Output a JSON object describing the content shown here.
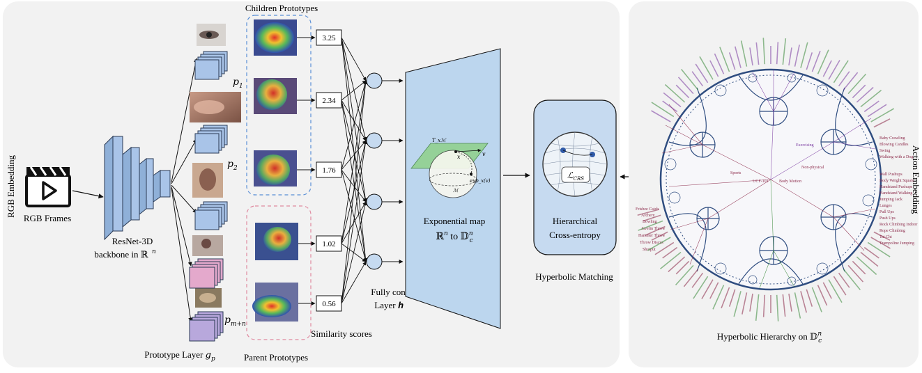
{
  "left_panel": {
    "side_label": "RGB Embedding",
    "rgb_frames_label": "RGB Frames",
    "backbone_label_1": "ResNet-3D",
    "backbone_label_2": "backbone in ℝ",
    "backbone_sup": "n",
    "prototype_layer_label": "Prototype Layer 𝑔",
    "prototype_layer_sub": "p",
    "children_prototypes_label": "Children Prototypes",
    "parent_prototypes_label": "Parent Prototypes",
    "similarity_scores_label": "Similarity scores",
    "fc_label_1": "Fully connected",
    "fc_label_2": "Layer 𝒉",
    "prototype_labels": [
      {
        "base": "p",
        "sub": "1"
      },
      {
        "base": "p",
        "sub": "2"
      },
      {
        "base": "p",
        "sub": "m+n"
      }
    ],
    "scores": [
      "3.25",
      "2.34",
      "1.76",
      "1.02",
      "0.56"
    ],
    "exp_map_title": "Exponential map",
    "exp_map_from": "ℝ",
    "exp_map_from_sup": "n",
    "exp_map_to_word": "to",
    "exp_map_to": "𝔻",
    "exp_map_to_sup": "n",
    "exp_map_to_sub": "c",
    "manifold_labels": {
      "tangent": "T_xℳ",
      "x": "x",
      "v": "v",
      "exp": "exp_x(v)",
      "M": "ℳ"
    },
    "hce_label_1": "Hierarchical",
    "hce_label_2": "Cross-entropy",
    "loss_label": "ℒ",
    "loss_sub": "CRS",
    "hyperbolic_matching_label": "Hyperbolic Matching"
  },
  "right_panel": {
    "side_label": "Action Embedding",
    "caption": "Hyperbolic Hierarchy on 𝔻",
    "caption_sup": "n",
    "caption_sub": "c",
    "center_labels": [
      "UCF-101",
      "Body Motion",
      "Non-physical",
      "Sports",
      "Exercising"
    ],
    "leaf_left": [
      "Frisbee Catch",
      "Archery",
      "Bowling",
      "Javelin Throw",
      "Hammer Throw",
      "Throw Discus",
      "Shotput"
    ],
    "leaf_right": [
      "Baby Crawling",
      "Blowing Candles",
      "Swing",
      "Walking with a Dog",
      "Wall Pushups",
      "Body Weight Squats",
      "Handstand Pushups",
      "Handstand Walking",
      "Jumping Jack",
      "Lunges",
      "Pull Ups",
      "Push Ups",
      "Rock Climbing Indoor",
      "Rope Climbing",
      "Tai Chi",
      "Trampoline Jumping"
    ]
  },
  "colors": {
    "panel_bg": "#f2f2f2",
    "box_blue": "#a9c4e8",
    "box_pink": "#e4a9cc",
    "box_purple": "#b8a8dc",
    "exp_map_fill": "#bcd6ee",
    "hce_fill": "#c6daf0",
    "disk_blue": "#2f4d80",
    "children_dash": "#5a8fd6",
    "parent_dash": "#e08aa0",
    "leaf_red": "#8c2a4a",
    "leaf_purple": "#7a3aa0",
    "leaf_green": "#3a8a3a"
  }
}
